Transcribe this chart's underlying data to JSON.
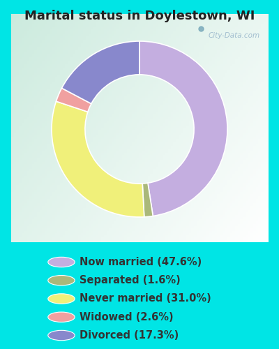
{
  "title": "Marital status in Doylestown, WI",
  "slices": [
    {
      "label": "Now married (47.6%)",
      "value": 47.6,
      "color": "#c4aee0"
    },
    {
      "label": "Separated (1.6%)",
      "value": 1.6,
      "color": "#aab87a"
    },
    {
      "label": "Never married (31.0%)",
      "value": 31.0,
      "color": "#f0f07a"
    },
    {
      "label": "Widowed (2.6%)",
      "value": 2.6,
      "color": "#f0a0a0"
    },
    {
      "label": "Divorced (17.3%)",
      "value": 17.3,
      "color": "#8888cc"
    }
  ],
  "bg_cyan": "#00e5e5",
  "chart_bg": "#d8ede4",
  "watermark": "City-Data.com",
  "title_fontsize": 13,
  "title_color": "#222222",
  "legend_fontsize": 10.5,
  "legend_text_color": "#333333",
  "donut_width": 0.38,
  "start_angle": 90
}
